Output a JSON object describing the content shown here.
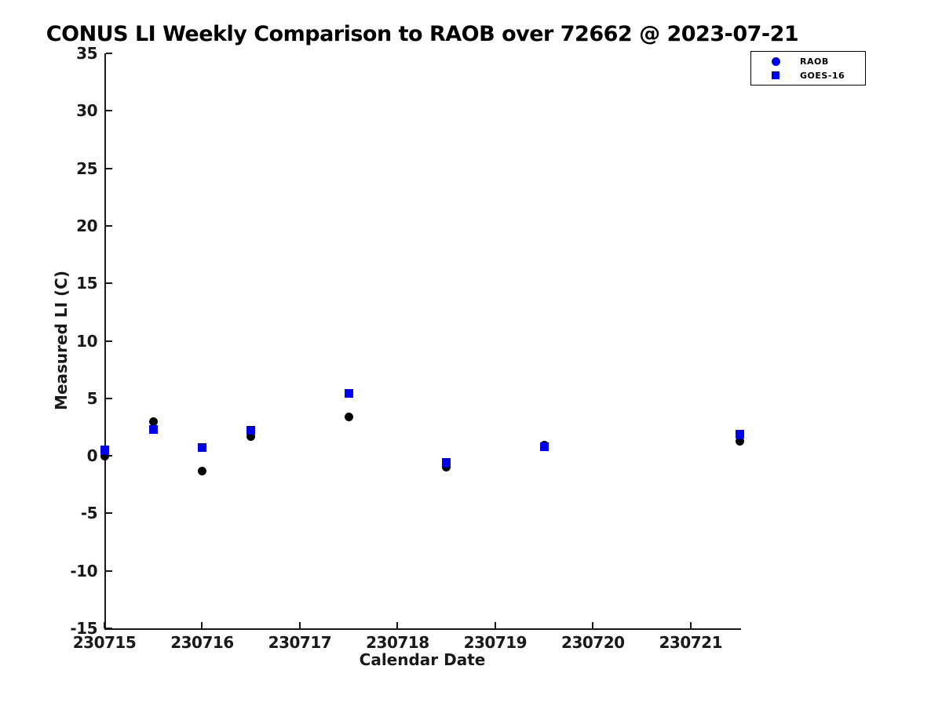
{
  "chart_data": {
    "type": "scatter",
    "title": "CONUS LI Weekly Comparison to RAOB over 72662 @ 2023-07-21",
    "xlabel": "Calendar Date",
    "ylabel": "Measured LI (C)",
    "xlim": [
      230715,
      230721.5
    ],
    "ylim": [
      -15,
      35
    ],
    "xticks": [
      230715,
      230716,
      230717,
      230718,
      230719,
      230720,
      230721
    ],
    "yticks": [
      -15,
      -10,
      -5,
      0,
      5,
      10,
      15,
      20,
      25,
      30,
      35
    ],
    "grid": false,
    "legend_position": "top-right",
    "x": [
      230715,
      230715.5,
      230716,
      230716.5,
      230717.5,
      230718.5,
      230719.5,
      230721.5
    ],
    "series": [
      {
        "name": "RAOB",
        "marker": "circle",
        "plot_color": "#000000",
        "legend_color": "#0000ee",
        "y": [
          0.0,
          3.0,
          -1.3,
          1.65,
          3.4,
          -1.0,
          0.95,
          1.25
        ]
      },
      {
        "name": "GOES-16",
        "marker": "square",
        "plot_color": "#0000ee",
        "legend_color": "#0000ee",
        "y": [
          0.5,
          2.3,
          0.7,
          2.25,
          5.45,
          -0.55,
          0.8,
          1.85
        ]
      }
    ]
  },
  "colors": {
    "axis": "#191919",
    "blue": "#0000ee",
    "black": "#000000",
    "background": "#ffffff"
  }
}
